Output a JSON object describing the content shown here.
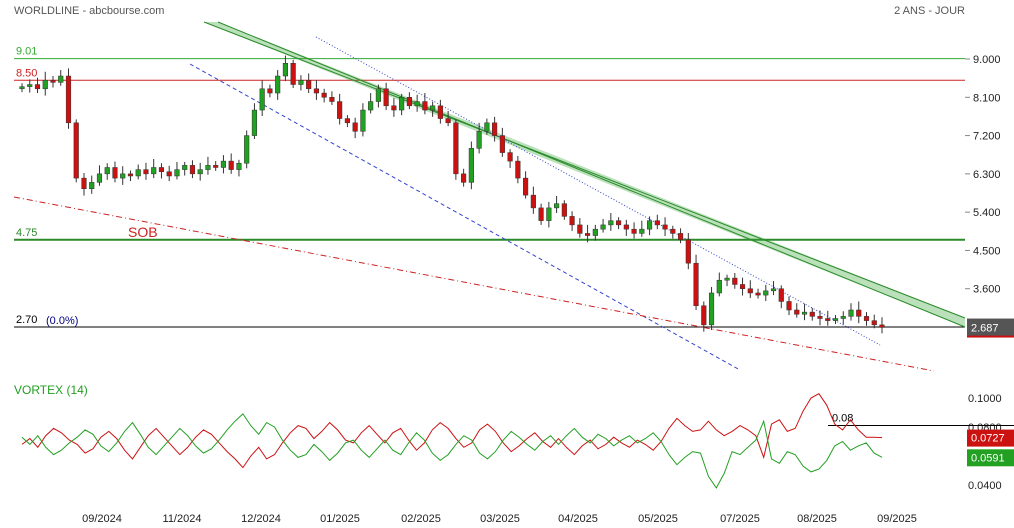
{
  "header": {
    "left": "WORLDLINE - abcbourse.com",
    "right": "2 ANS - JOUR"
  },
  "chart_data": [
    {
      "type": "candlestick",
      "title": "WORLDLINE - abcbourse.com",
      "subtitle": "2 ANS - JOUR",
      "x_ticks": [
        "09/2024",
        "11/2024",
        "12/2024",
        "01/2025",
        "02/2025",
        "03/2025",
        "04/2025",
        "05/2025",
        "07/2025",
        "08/2025",
        "09/2025"
      ],
      "y_ticks": [
        "9.000",
        "8.100",
        "7.200",
        "6.300",
        "5.400",
        "4.500",
        "3.600"
      ],
      "ylim": [
        2.5,
        9.7
      ],
      "last_price": "2.687",
      "annotation": "SOB",
      "horizontal_levels": [
        {
          "label": "9.01",
          "value": 9.01,
          "color": "#33aa33"
        },
        {
          "label": "8.50",
          "value": 8.5,
          "color": "#cc2222"
        },
        {
          "label": "4.75",
          "value": 4.75,
          "color": "#2a8a2a"
        },
        {
          "label": "2.70",
          "value": 2.7,
          "color": "#000000"
        }
      ],
      "level_note": "(0.0%)",
      "closes": [
        8.35,
        8.4,
        8.3,
        8.5,
        8.45,
        8.6,
        7.5,
        6.2,
        5.95,
        6.1,
        6.3,
        6.45,
        6.2,
        6.3,
        6.25,
        6.4,
        6.3,
        6.45,
        6.35,
        6.25,
        6.4,
        6.5,
        6.3,
        6.4,
        6.5,
        6.45,
        6.6,
        6.4,
        6.55,
        7.2,
        7.8,
        8.3,
        8.2,
        8.6,
        8.9,
        8.4,
        8.5,
        8.3,
        8.2,
        8.1,
        8.0,
        7.6,
        7.5,
        7.3,
        7.8,
        8.0,
        8.3,
        7.9,
        7.8,
        8.1,
        7.9,
        8.0,
        7.8,
        7.9,
        7.6,
        7.5,
        6.3,
        6.1,
        6.9,
        7.3,
        7.5,
        7.2,
        6.8,
        6.6,
        6.2,
        5.8,
        5.5,
        5.2,
        5.5,
        5.6,
        5.3,
        5.1,
        4.9,
        4.85,
        5.0,
        5.1,
        5.2,
        5.1,
        5.0,
        4.9,
        5.0,
        5.2,
        5.1,
        5.0,
        4.9,
        4.75,
        4.2,
        3.2,
        2.75,
        3.5,
        3.8,
        3.85,
        3.7,
        3.6,
        3.5,
        3.45,
        3.55,
        3.6,
        3.3,
        3.1,
        3.0,
        3.05,
        2.95,
        2.9,
        2.85,
        2.9,
        2.95,
        3.1,
        2.95,
        2.85,
        2.75,
        2.69
      ]
    },
    {
      "type": "line",
      "title": "VORTEX (14)",
      "y_ticks": [
        "0.1000",
        "0.0800",
        "0.0600",
        "0.0400"
      ],
      "ylim": [
        0.032,
        0.108
      ],
      "reference_line": {
        "label": "0.08",
        "value": 0.081
      },
      "series": [
        {
          "name": "",
          "color": "#cc1111",
          "last_label": "0.0727",
          "values": [
            0.068,
            0.072,
            0.066,
            0.074,
            0.079,
            0.076,
            0.071,
            0.068,
            0.062,
            0.065,
            0.073,
            0.077,
            0.072,
            0.064,
            0.058,
            0.066,
            0.074,
            0.079,
            0.073,
            0.067,
            0.061,
            0.066,
            0.073,
            0.078,
            0.075,
            0.069,
            0.063,
            0.058,
            0.052,
            0.06,
            0.066,
            0.058,
            0.061,
            0.069,
            0.076,
            0.081,
            0.079,
            0.072,
            0.077,
            0.083,
            0.078,
            0.071,
            0.069,
            0.076,
            0.081,
            0.075,
            0.069,
            0.076,
            0.079,
            0.071,
            0.064,
            0.069,
            0.078,
            0.083,
            0.079,
            0.072,
            0.066,
            0.069,
            0.078,
            0.082,
            0.077,
            0.069,
            0.063,
            0.067,
            0.072,
            0.076,
            0.07,
            0.066,
            0.072,
            0.066,
            0.061,
            0.067,
            0.071,
            0.065,
            0.068,
            0.073,
            0.069,
            0.066,
            0.071,
            0.068,
            0.064,
            0.07,
            0.079,
            0.086,
            0.081,
            0.077,
            0.078,
            0.084,
            0.078,
            0.074,
            0.077,
            0.081,
            0.078,
            0.074,
            0.059,
            0.082,
            0.085,
            0.077,
            0.079,
            0.091,
            0.1,
            0.103,
            0.095,
            0.082,
            0.078,
            0.085,
            0.078,
            0.073,
            0.073,
            0.0727
          ]
        },
        {
          "name": "",
          "color": "#22a022",
          "last_label": "0.0591",
          "values": [
            0.073,
            0.068,
            0.074,
            0.066,
            0.061,
            0.064,
            0.069,
            0.073,
            0.078,
            0.075,
            0.067,
            0.063,
            0.069,
            0.077,
            0.083,
            0.075,
            0.066,
            0.061,
            0.067,
            0.073,
            0.079,
            0.074,
            0.067,
            0.062,
            0.065,
            0.071,
            0.078,
            0.084,
            0.089,
            0.081,
            0.075,
            0.083,
            0.08,
            0.071,
            0.064,
            0.059,
            0.061,
            0.068,
            0.063,
            0.057,
            0.062,
            0.069,
            0.071,
            0.064,
            0.059,
            0.065,
            0.071,
            0.064,
            0.061,
            0.069,
            0.076,
            0.071,
            0.062,
            0.057,
            0.061,
            0.068,
            0.074,
            0.071,
            0.062,
            0.058,
            0.063,
            0.071,
            0.077,
            0.073,
            0.068,
            0.064,
            0.07,
            0.074,
            0.068,
            0.074,
            0.079,
            0.073,
            0.069,
            0.075,
            0.072,
            0.067,
            0.071,
            0.074,
            0.069,
            0.072,
            0.076,
            0.07,
            0.061,
            0.054,
            0.059,
            0.063,
            0.062,
            0.046,
            0.038,
            0.048,
            0.063,
            0.061,
            0.066,
            0.071,
            0.084,
            0.058,
            0.055,
            0.063,
            0.061,
            0.053,
            0.049,
            0.051,
            0.057,
            0.067,
            0.07,
            0.064,
            0.067,
            0.069,
            0.062,
            0.0591
          ]
        }
      ]
    }
  ]
}
